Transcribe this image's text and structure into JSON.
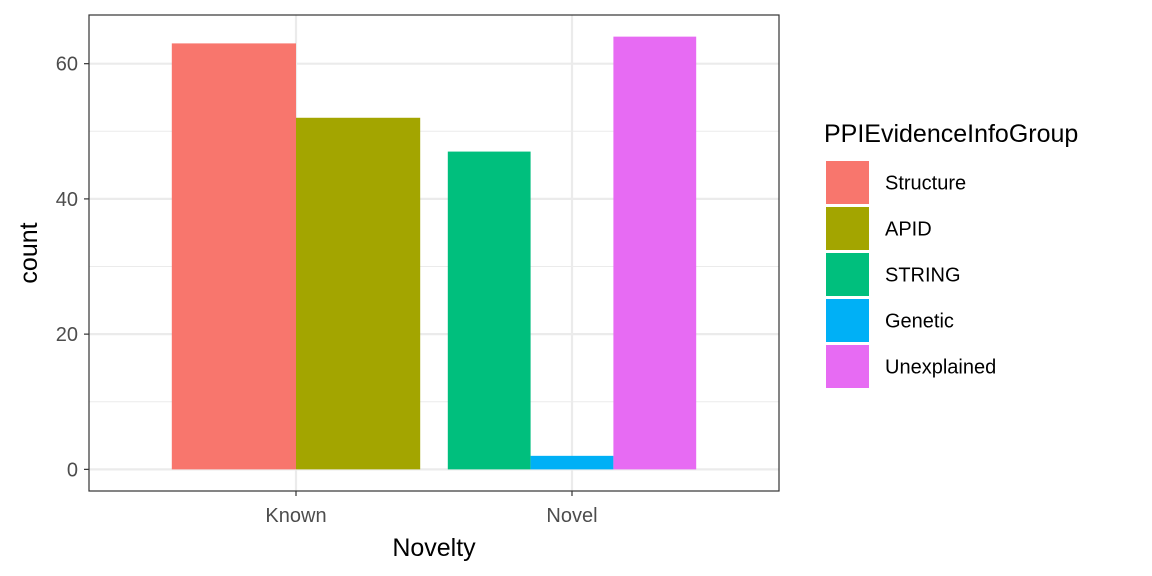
{
  "chart_data": {
    "type": "bar",
    "categories": [
      "Known",
      "Novel"
    ],
    "xlabel": "Novelty",
    "ylabel": "count",
    "ylim": [
      -3.2,
      67.2
    ],
    "yticks": [
      0,
      20,
      40,
      60
    ],
    "grid": true,
    "legend": {
      "title": "PPIEvidenceInfoGroup",
      "placement": "right"
    },
    "series": [
      {
        "name": "Structure",
        "color": "#F8766D",
        "values": {
          "Known": 63
        }
      },
      {
        "name": "APID",
        "color": "#A3A500",
        "values": {
          "Known": 52
        }
      },
      {
        "name": "STRING",
        "color": "#00BF7D",
        "values": {
          "Novel": 47
        }
      },
      {
        "name": "Genetic",
        "color": "#00B0F6",
        "values": {
          "Novel": 2
        }
      },
      {
        "name": "Unexplained",
        "color": "#E76BF3",
        "values": {
          "Novel": 64
        }
      }
    ]
  }
}
